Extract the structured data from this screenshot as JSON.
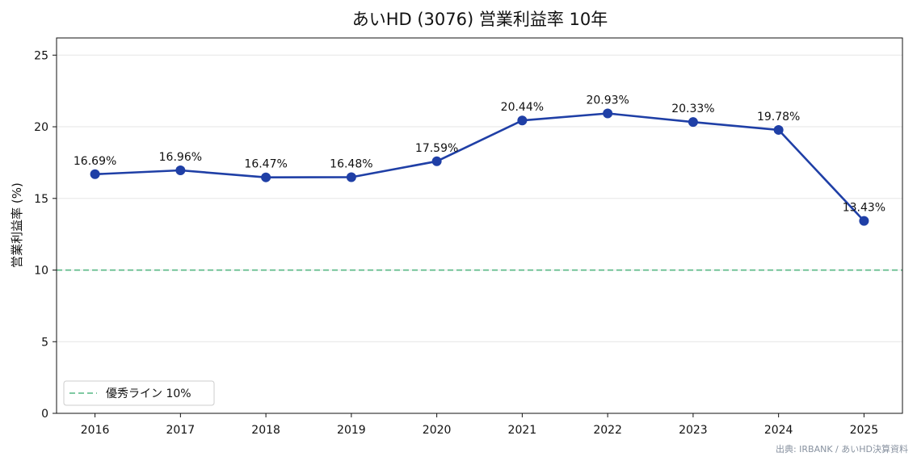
{
  "chart_data": {
    "type": "line",
    "title": "あいHD (3076) 営業利益率 10年",
    "xlabel": "",
    "ylabel": "営業利益率 (%)",
    "categories": [
      "2016",
      "2017",
      "2018",
      "2019",
      "2020",
      "2021",
      "2022",
      "2023",
      "2024",
      "2025"
    ],
    "series": [
      {
        "values": [
          16.69,
          16.96,
          16.47,
          16.48,
          17.59,
          20.44,
          20.93,
          20.33,
          19.78,
          13.43
        ],
        "labels": [
          "16.69%",
          "16.96%",
          "16.47%",
          "16.48%",
          "17.59%",
          "20.44%",
          "20.93%",
          "20.33%",
          "19.78%",
          "13.43%"
        ],
        "color": "#1f3fa6"
      }
    ],
    "reference_line": {
      "value": 10,
      "label": "優秀ライン 10%",
      "color": "#55b783",
      "style": "dashed"
    },
    "ylim": [
      0,
      26.2
    ],
    "yticks": [
      "0",
      "5",
      "10",
      "15",
      "20",
      "25"
    ],
    "ytick_values": [
      0,
      5,
      10,
      15,
      20,
      25
    ],
    "grid": "horizontal",
    "legend": "bottom-left",
    "source": "出典: IRBANK / あいHD決算資料"
  }
}
